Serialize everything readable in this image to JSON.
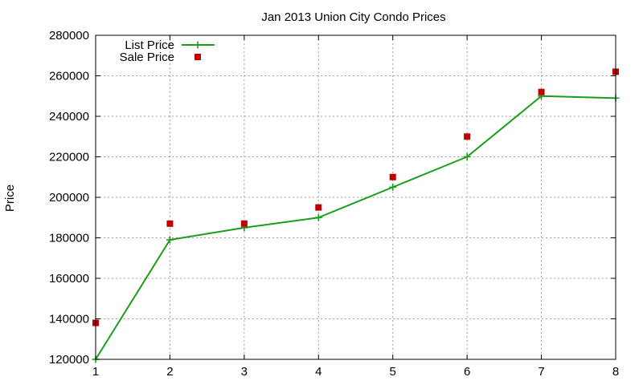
{
  "chart_data": {
    "type": "line",
    "title": "Jan 2013 Union City Condo Prices",
    "xlabel": "",
    "ylabel": "Price",
    "x": [
      1,
      2,
      3,
      4,
      5,
      6,
      7,
      8
    ],
    "xlim": [
      1,
      8
    ],
    "ylim": [
      120000,
      280000
    ],
    "xticks": [
      "1",
      "2",
      "3",
      "4",
      "5",
      "6",
      "7",
      "8"
    ],
    "yticks": [
      "120000",
      "140000",
      "160000",
      "180000",
      "200000",
      "220000",
      "240000",
      "260000",
      "280000"
    ],
    "grid": true,
    "legend_position": "top-left",
    "series": [
      {
        "name": "List Price",
        "style": "line-with-plus-markers",
        "color": "#1a9e1a",
        "values": [
          120000,
          179000,
          185000,
          190000,
          205000,
          220000,
          250000,
          249000
        ]
      },
      {
        "name": "Sale Price",
        "style": "square-markers",
        "color": "#c00000",
        "values": [
          138000,
          187000,
          187000,
          195000,
          210000,
          230000,
          252000,
          262000
        ]
      }
    ]
  }
}
